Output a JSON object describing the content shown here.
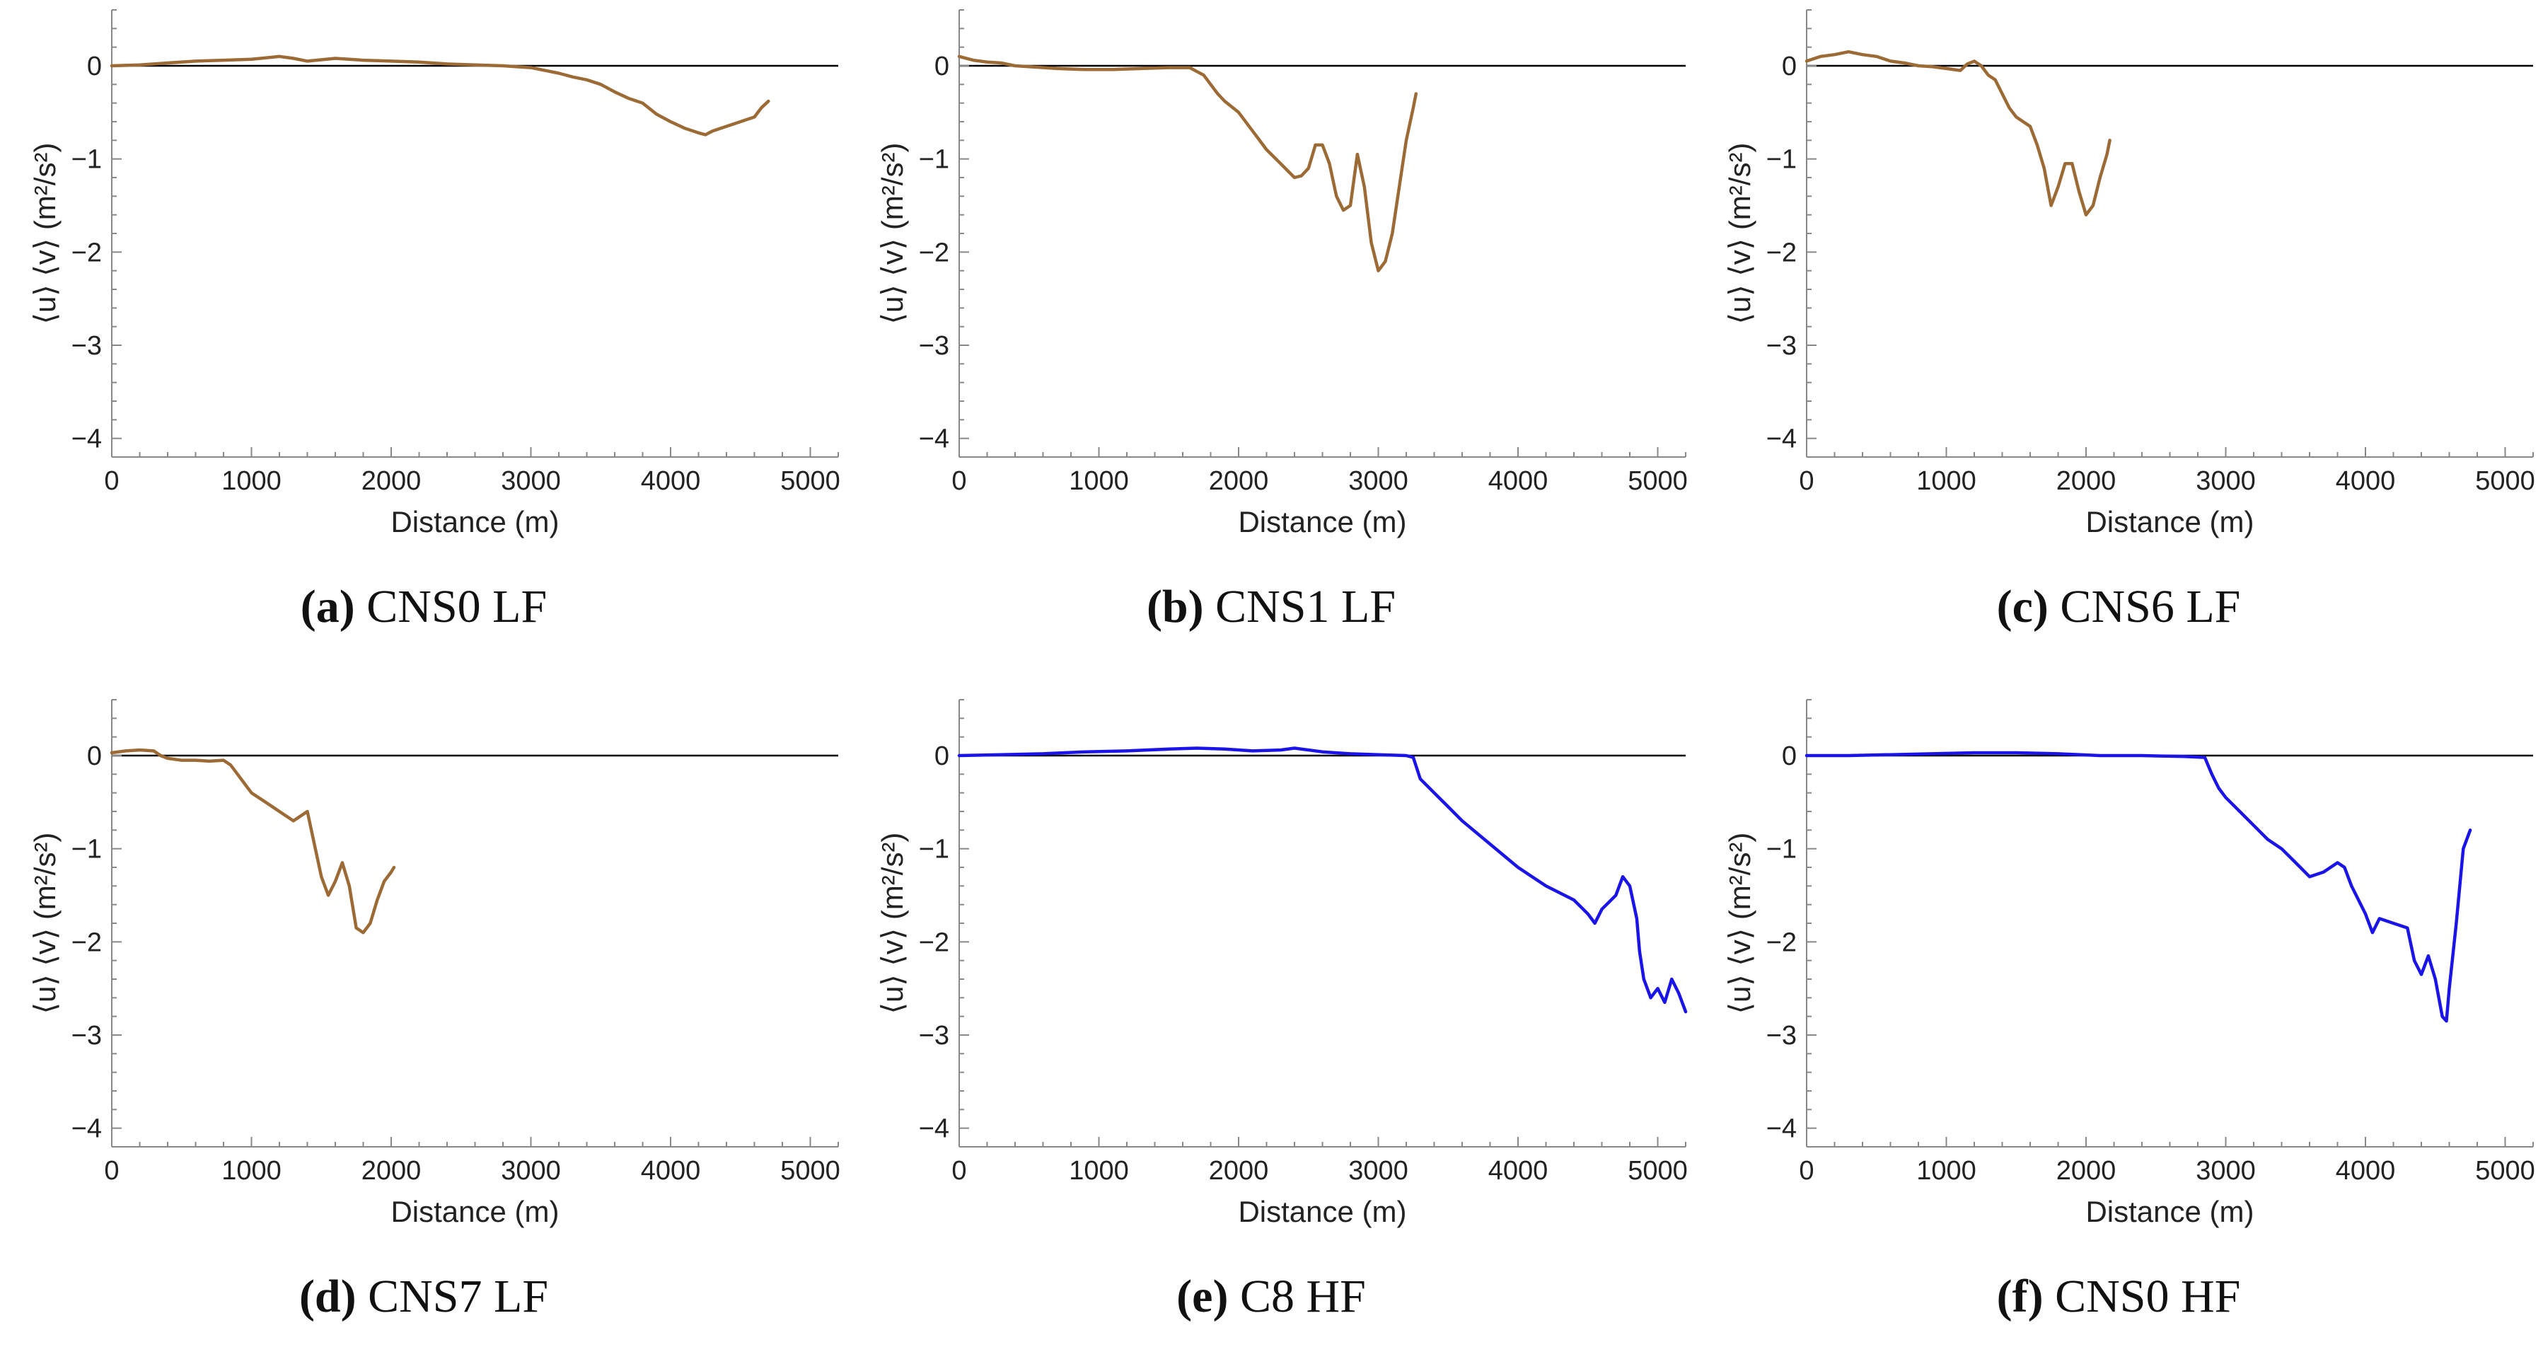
{
  "figure": {
    "x_tick_labels": [
      "0",
      "1000",
      "2000",
      "3000",
      "4000",
      "5000"
    ],
    "y_tick_labels": [
      "0",
      "−1",
      "−2",
      "−3",
      "−4"
    ]
  },
  "chart_data": [
    {
      "panel": "a",
      "type": "line",
      "caption_letter": "(a)",
      "caption_text": "CNS0 LF",
      "xlabel": "Distance (m)",
      "ylabel": "⟨u⟩ ⟨v⟩ (m²/s²)",
      "xlim": [
        0,
        5200
      ],
      "ylim": [
        -4.2,
        0.6
      ],
      "color": "#9c6a35",
      "series": [
        {
          "name": "CNS0 LF",
          "x": [
            0,
            200,
            400,
            600,
            800,
            1000,
            1200,
            1300,
            1400,
            1600,
            1800,
            2000,
            2200,
            2400,
            2600,
            2800,
            3000,
            3100,
            3200,
            3300,
            3400,
            3500,
            3600,
            3700,
            3800,
            3900,
            4000,
            4100,
            4200,
            4250,
            4300,
            4400,
            4500,
            4600,
            4650,
            4700
          ],
          "y": [
            0,
            0.01,
            0.03,
            0.05,
            0.06,
            0.07,
            0.1,
            0.08,
            0.05,
            0.08,
            0.06,
            0.05,
            0.04,
            0.02,
            0.01,
            0.0,
            -0.02,
            -0.05,
            -0.08,
            -0.12,
            -0.15,
            -0.2,
            -0.28,
            -0.35,
            -0.4,
            -0.52,
            -0.6,
            -0.67,
            -0.72,
            -0.74,
            -0.7,
            -0.65,
            -0.6,
            -0.55,
            -0.45,
            -0.38
          ]
        }
      ]
    },
    {
      "panel": "b",
      "type": "line",
      "caption_letter": "(b)",
      "caption_text": "CNS1 LF",
      "xlabel": "Distance (m)",
      "ylabel": "⟨u⟩ ⟨v⟩ (m²/s²)",
      "xlim": [
        0,
        5200
      ],
      "ylim": [
        -4.2,
        0.6
      ],
      "color": "#9c6a35",
      "series": [
        {
          "name": "CNS1 LF",
          "x": [
            0,
            100,
            200,
            300,
            400,
            500,
            700,
            900,
            1100,
            1300,
            1500,
            1650,
            1750,
            1800,
            1850,
            1900,
            2000,
            2100,
            2200,
            2300,
            2400,
            2450,
            2500,
            2550,
            2600,
            2650,
            2700,
            2750,
            2800,
            2850,
            2900,
            2950,
            3000,
            3050,
            3100,
            3150,
            3200,
            3250,
            3270
          ],
          "y": [
            0.1,
            0.06,
            0.04,
            0.03,
            0.0,
            -0.01,
            -0.03,
            -0.04,
            -0.04,
            -0.03,
            -0.02,
            -0.02,
            -0.1,
            -0.2,
            -0.3,
            -0.38,
            -0.5,
            -0.7,
            -0.9,
            -1.05,
            -1.2,
            -1.18,
            -1.1,
            -0.85,
            -0.85,
            -1.05,
            -1.4,
            -1.55,
            -1.5,
            -0.95,
            -1.3,
            -1.9,
            -2.2,
            -2.1,
            -1.8,
            -1.3,
            -0.8,
            -0.45,
            -0.3
          ]
        }
      ]
    },
    {
      "panel": "c",
      "type": "line",
      "caption_letter": "(c)",
      "caption_text": "CNS6 LF",
      "xlabel": "Distance (m)",
      "ylabel": "⟨u⟩ ⟨v⟩ (m²/s²)",
      "xlim": [
        0,
        5200
      ],
      "ylim": [
        -4.2,
        0.6
      ],
      "color": "#9c6a35",
      "series": [
        {
          "name": "CNS6 LF",
          "x": [
            0,
            100,
            200,
            300,
            400,
            500,
            600,
            700,
            800,
            900,
            1000,
            1100,
            1150,
            1200,
            1250,
            1300,
            1350,
            1400,
            1450,
            1500,
            1550,
            1600,
            1650,
            1700,
            1750,
            1800,
            1850,
            1900,
            1950,
            2000,
            2050,
            2100,
            2150,
            2170
          ],
          "y": [
            0.05,
            0.1,
            0.12,
            0.15,
            0.12,
            0.1,
            0.05,
            0.03,
            0.0,
            -0.01,
            -0.03,
            -0.05,
            0.02,
            0.05,
            0.0,
            -0.1,
            -0.15,
            -0.3,
            -0.45,
            -0.55,
            -0.6,
            -0.65,
            -0.85,
            -1.1,
            -1.5,
            -1.3,
            -1.05,
            -1.05,
            -1.35,
            -1.6,
            -1.5,
            -1.2,
            -0.95,
            -0.8
          ]
        }
      ]
    },
    {
      "panel": "d",
      "type": "line",
      "caption_letter": "(d)",
      "caption_text": "CNS7 LF",
      "xlabel": "Distance (m)",
      "ylabel": "⟨u⟩ ⟨v⟩ (m²/s²)",
      "xlim": [
        0,
        5200
      ],
      "ylim": [
        -4.2,
        0.6
      ],
      "color": "#9c6a35",
      "series": [
        {
          "name": "CNS7 LF",
          "x": [
            0,
            100,
            200,
            300,
            350,
            400,
            500,
            600,
            700,
            800,
            850,
            900,
            950,
            1000,
            1100,
            1200,
            1300,
            1400,
            1450,
            1500,
            1550,
            1600,
            1650,
            1700,
            1750,
            1800,
            1850,
            1900,
            1950,
            2000,
            2020
          ],
          "y": [
            0.03,
            0.05,
            0.06,
            0.05,
            0.0,
            -0.03,
            -0.05,
            -0.05,
            -0.06,
            -0.05,
            -0.1,
            -0.2,
            -0.3,
            -0.4,
            -0.5,
            -0.6,
            -0.7,
            -0.6,
            -0.95,
            -1.3,
            -1.5,
            -1.35,
            -1.15,
            -1.4,
            -1.85,
            -1.9,
            -1.8,
            -1.55,
            -1.35,
            -1.25,
            -1.2
          ]
        }
      ]
    },
    {
      "panel": "e",
      "type": "line",
      "caption_letter": "(e)",
      "caption_text": "C8 HF",
      "xlabel": "Distance (m)",
      "ylabel": "⟨u⟩ ⟨v⟩ (m²/s²)",
      "xlim": [
        0,
        5200
      ],
      "ylim": [
        -4.2,
        0.6
      ],
      "color": "#1a14e6",
      "series": [
        {
          "name": "C8 HF",
          "x": [
            0,
            300,
            600,
            900,
            1200,
            1500,
            1700,
            1900,
            2100,
            2300,
            2400,
            2600,
            2800,
            3000,
            3200,
            3250,
            3300,
            3400,
            3500,
            3600,
            3800,
            4000,
            4200,
            4400,
            4500,
            4550,
            4600,
            4700,
            4750,
            4800,
            4850,
            4870,
            4900,
            4950,
            5000,
            5050,
            5100,
            5150,
            5200
          ],
          "y": [
            0,
            0.01,
            0.02,
            0.04,
            0.05,
            0.07,
            0.08,
            0.07,
            0.05,
            0.06,
            0.08,
            0.04,
            0.02,
            0.01,
            0.0,
            -0.02,
            -0.25,
            -0.4,
            -0.55,
            -0.7,
            -0.95,
            -1.2,
            -1.4,
            -1.55,
            -1.7,
            -1.8,
            -1.65,
            -1.5,
            -1.3,
            -1.4,
            -1.75,
            -2.1,
            -2.4,
            -2.6,
            -2.5,
            -2.65,
            -2.4,
            -2.55,
            -2.75
          ]
        }
      ]
    },
    {
      "panel": "f",
      "type": "line",
      "caption_letter": "(f)",
      "caption_text": "CNS0 HF",
      "xlabel": "Distance (m)",
      "ylabel": "⟨u⟩ ⟨v⟩ (m²/s²)",
      "xlim": [
        0,
        5200
      ],
      "ylim": [
        -4.2,
        0.6
      ],
      "color": "#1a14e6",
      "series": [
        {
          "name": "CNS0 HF",
          "x": [
            0,
            300,
            600,
            900,
            1200,
            1500,
            1800,
            2100,
            2400,
            2700,
            2850,
            2900,
            2950,
            3000,
            3100,
            3200,
            3300,
            3400,
            3500,
            3600,
            3700,
            3800,
            3850,
            3900,
            4000,
            4050,
            4100,
            4200,
            4300,
            4350,
            4400,
            4450,
            4500,
            4550,
            4580,
            4600,
            4650,
            4700,
            4750
          ],
          "y": [
            0,
            0.0,
            0.01,
            0.02,
            0.03,
            0.03,
            0.02,
            0.0,
            0.0,
            -0.01,
            -0.02,
            -0.2,
            -0.35,
            -0.45,
            -0.6,
            -0.75,
            -0.9,
            -1.0,
            -1.15,
            -1.3,
            -1.25,
            -1.15,
            -1.2,
            -1.4,
            -1.7,
            -1.9,
            -1.75,
            -1.8,
            -1.85,
            -2.2,
            -2.35,
            -2.15,
            -2.4,
            -2.8,
            -2.85,
            -2.5,
            -1.8,
            -1.0,
            -0.8
          ]
        }
      ]
    }
  ]
}
